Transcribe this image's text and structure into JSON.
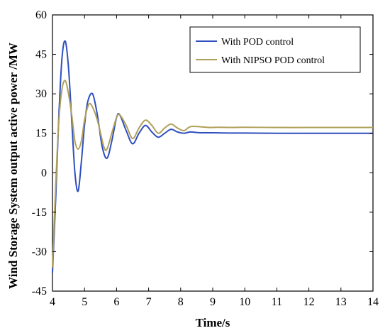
{
  "chart_data": {
    "type": "line",
    "title": "",
    "xlabel": "Time/s",
    "ylabel": "Wind Storage System output active power /MW",
    "xlim": [
      4,
      14
    ],
    "ylim": [
      -45,
      60
    ],
    "xticks": [
      "4",
      "5",
      "6",
      "7",
      "8",
      "9",
      "10",
      "11",
      "12",
      "13",
      "14"
    ],
    "yticks": [
      "60",
      "45",
      "30",
      "15",
      "0",
      "-15",
      "-30",
      "-45"
    ],
    "grid": false,
    "legend_position": "top-right",
    "series": [
      {
        "name": "With  POD control",
        "color": "#2f4fbf",
        "x": [
          4.0,
          4.1,
          4.2,
          4.3,
          4.4,
          4.5,
          4.6,
          4.7,
          4.8,
          4.9,
          5.0,
          5.1,
          5.25,
          5.4,
          5.55,
          5.7,
          5.85,
          6.0,
          6.1,
          6.3,
          6.5,
          6.7,
          6.9,
          7.1,
          7.3,
          7.5,
          7.7,
          7.9,
          8.1,
          8.3,
          8.6,
          9.0,
          9.5,
          10.0,
          11.0,
          12.0,
          13.0,
          14.0
        ],
        "y": [
          -38,
          -10,
          22,
          44,
          50,
          40,
          20,
          0,
          -7,
          4,
          18,
          27,
          30,
          22,
          10,
          5.5,
          12,
          21,
          22,
          16,
          11,
          15,
          18,
          15.5,
          13.5,
          15,
          16.5,
          15.5,
          15,
          15.5,
          15.2,
          15.2,
          15.1,
          15.1,
          15,
          15,
          15,
          15
        ]
      },
      {
        "name": "With NIPSO POD control",
        "color": "#b0a05a",
        "x": [
          4.0,
          4.1,
          4.2,
          4.3,
          4.4,
          4.5,
          4.6,
          4.7,
          4.8,
          4.9,
          5.0,
          5.1,
          5.2,
          5.4,
          5.6,
          5.7,
          5.85,
          6.0,
          6.1,
          6.3,
          6.5,
          6.7,
          6.9,
          7.1,
          7.3,
          7.5,
          7.7,
          7.9,
          8.1,
          8.3,
          8.6,
          8.9,
          9.2,
          9.6,
          10.0,
          11.0,
          12.0,
          13.0,
          14.0
        ],
        "y": [
          -36,
          -5,
          20,
          32,
          35,
          30,
          22,
          12,
          9,
          12,
          20,
          25,
          26,
          20,
          10,
          9,
          15,
          21,
          22,
          18,
          13,
          17,
          20,
          18,
          15,
          17,
          18.5,
          17,
          16,
          17.5,
          17.5,
          17.2,
          17.3,
          17.2,
          17.3,
          17.2,
          17.2,
          17.2,
          17.2
        ]
      }
    ]
  }
}
